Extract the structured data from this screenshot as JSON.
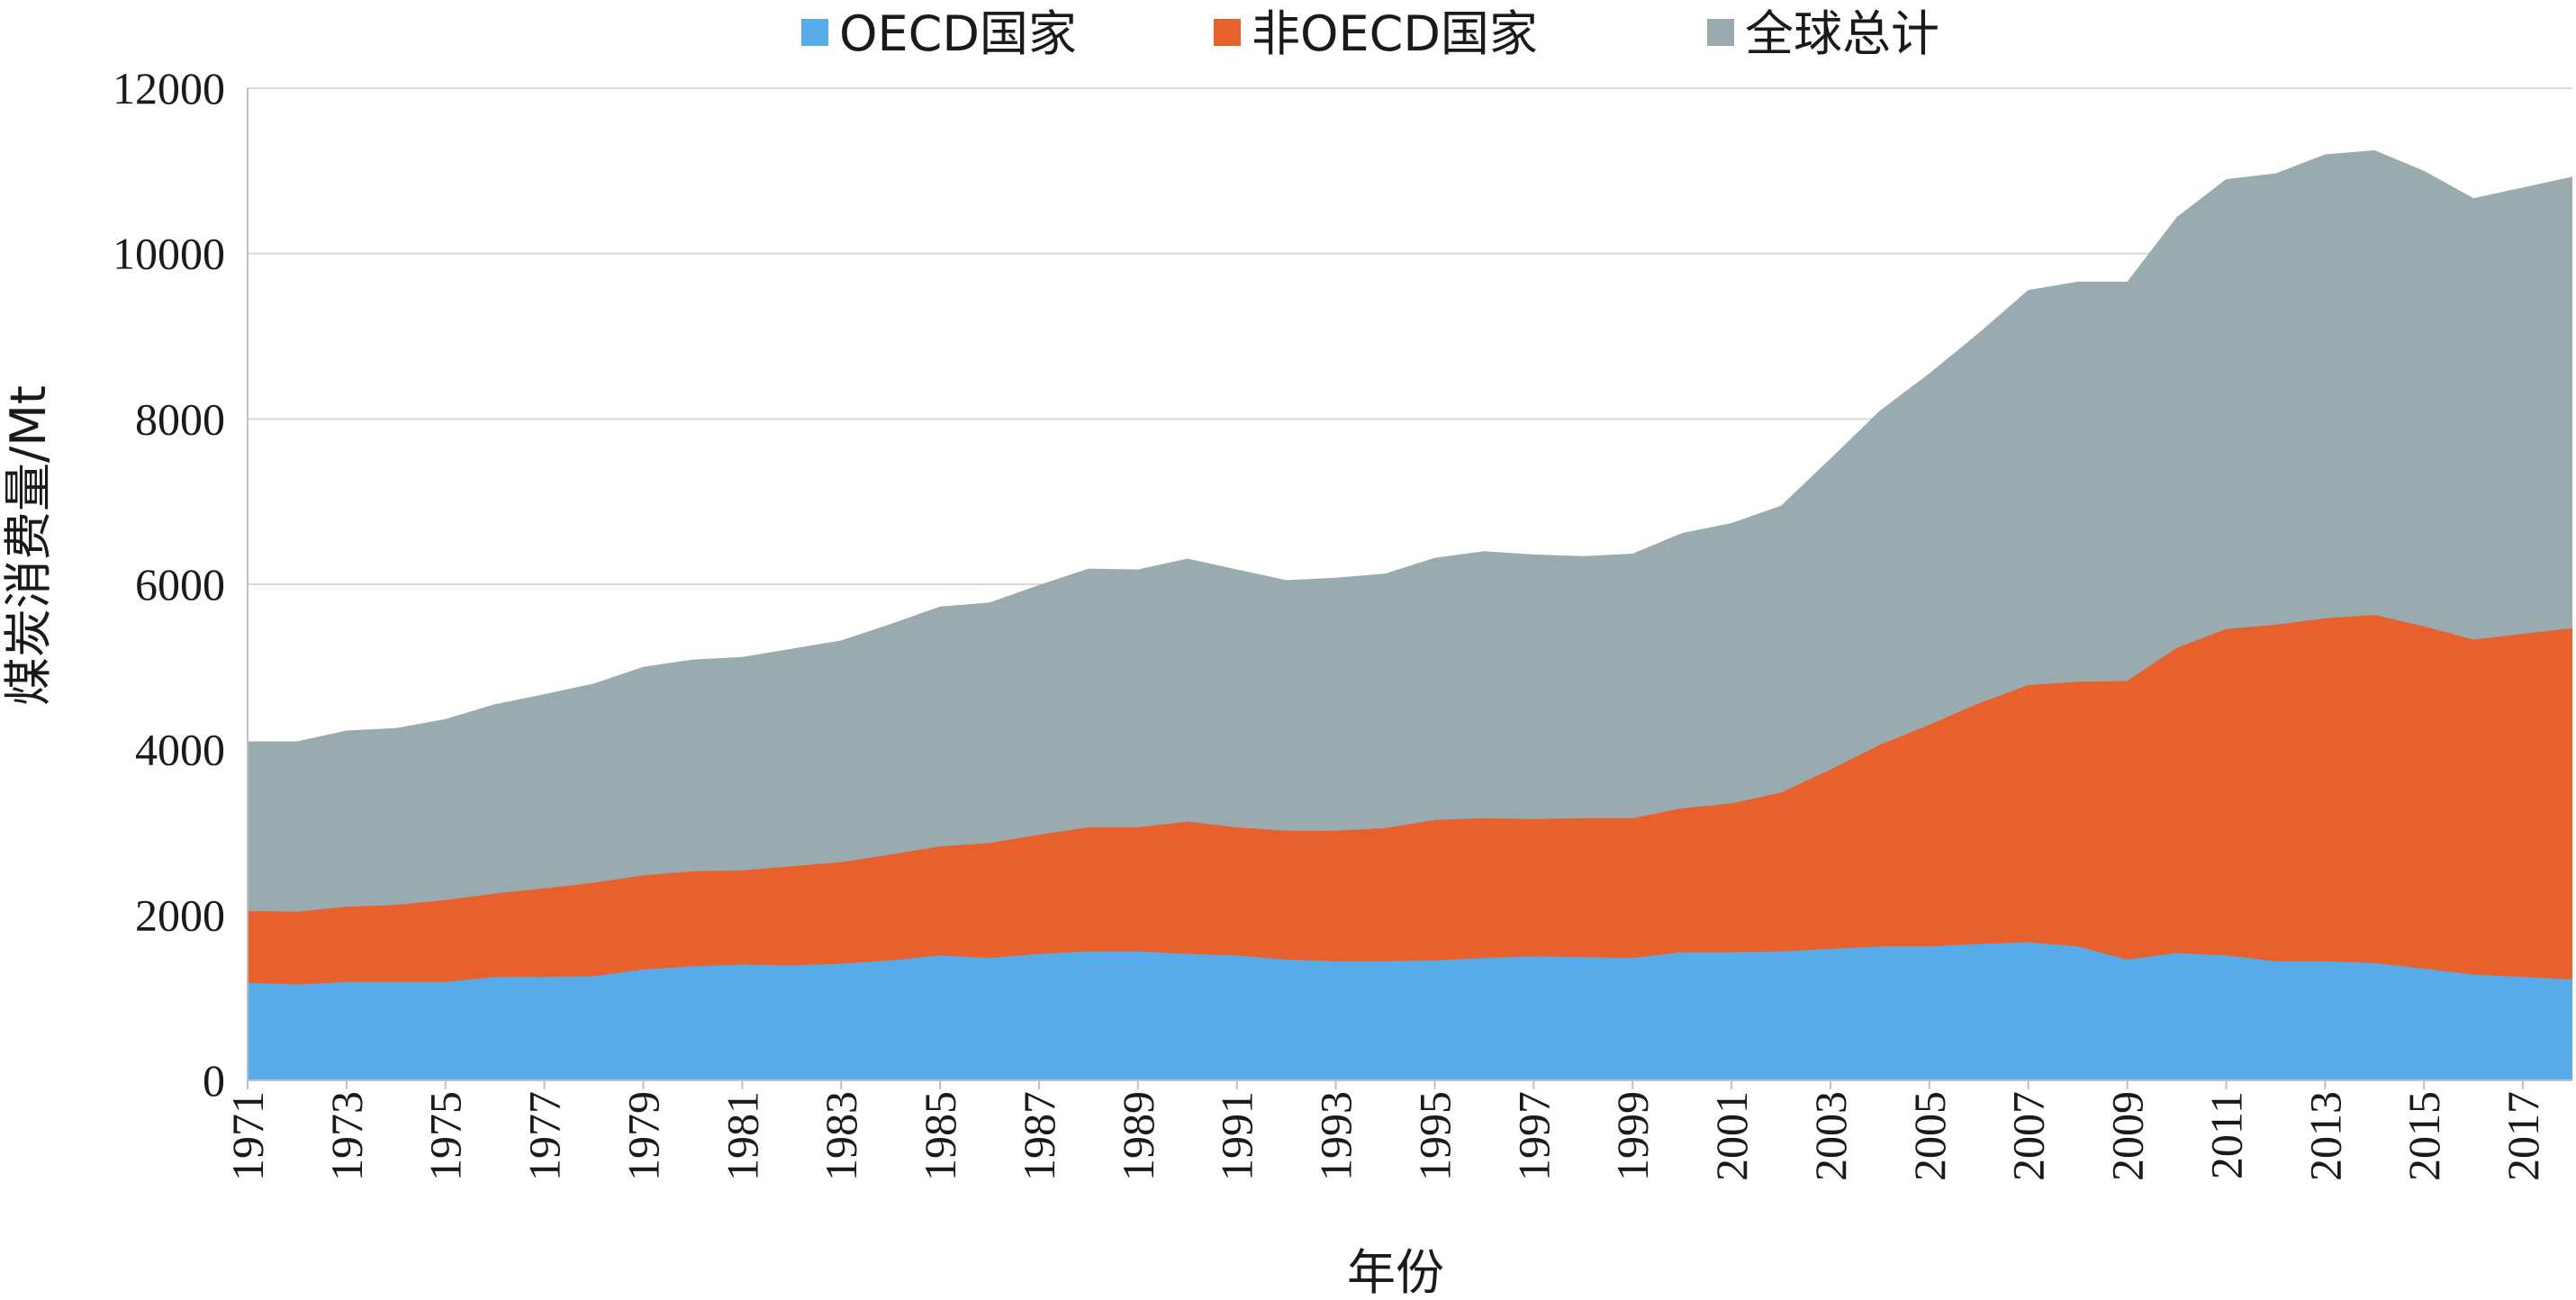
{
  "chart_data": {
    "type": "area",
    "stacked": false,
    "xlabel": "年份",
    "ylabel": "煤炭消费量/Mt",
    "ylim": [
      0,
      12000
    ],
    "y_ticks": [
      0,
      2000,
      4000,
      6000,
      8000,
      10000,
      12000
    ],
    "x": [
      1971,
      1972,
      1973,
      1974,
      1975,
      1976,
      1977,
      1978,
      1979,
      1980,
      1981,
      1982,
      1983,
      1984,
      1985,
      1986,
      1987,
      1988,
      1989,
      1990,
      1991,
      1992,
      1993,
      1994,
      1995,
      1996,
      1997,
      1998,
      1999,
      2000,
      2001,
      2002,
      2003,
      2004,
      2005,
      2006,
      2007,
      2008,
      2009,
      2010,
      2011,
      2012,
      2013,
      2014,
      2015,
      2016,
      2017,
      2018
    ],
    "x_tick_labels": [
      1971,
      1973,
      1975,
      1977,
      1979,
      1981,
      1983,
      1985,
      1987,
      1989,
      1991,
      1993,
      1995,
      1997,
      1999,
      2001,
      2003,
      2005,
      2007,
      2009,
      2011,
      2013,
      2015,
      2017
    ],
    "grid": true,
    "legend_position": "top-center",
    "series": [
      {
        "name": "全球总计",
        "color": "#9aabaf",
        "values": [
          4100,
          4100,
          4230,
          4260,
          4370,
          4550,
          4670,
          4800,
          5000,
          5090,
          5120,
          5220,
          5320,
          5520,
          5730,
          5780,
          5990,
          6190,
          6180,
          6310,
          6180,
          6050,
          6080,
          6130,
          6320,
          6400,
          6360,
          6340,
          6370,
          6620,
          6740,
          6950,
          7520,
          8100,
          8550,
          9040,
          9560,
          9660,
          9660,
          10440,
          10900,
          10970,
          11200,
          11250,
          11000,
          10670,
          10800,
          10930
        ]
      },
      {
        "name": "非OECD国家",
        "color": "#e8602c",
        "values": [
          2050,
          2040,
          2100,
          2120,
          2180,
          2260,
          2320,
          2390,
          2480,
          2530,
          2540,
          2590,
          2640,
          2730,
          2830,
          2870,
          2970,
          3060,
          3060,
          3130,
          3060,
          3020,
          3020,
          3050,
          3150,
          3170,
          3160,
          3170,
          3170,
          3290,
          3350,
          3480,
          3760,
          4060,
          4300,
          4560,
          4780,
          4820,
          4830,
          5230,
          5460,
          5510,
          5590,
          5630,
          5490,
          5330,
          5400,
          5470
        ]
      },
      {
        "name": "OECD国家",
        "color": "#57abe8",
        "values": [
          1180,
          1160,
          1190,
          1190,
          1190,
          1250,
          1250,
          1260,
          1340,
          1380,
          1400,
          1390,
          1410,
          1450,
          1510,
          1480,
          1530,
          1560,
          1560,
          1530,
          1510,
          1460,
          1440,
          1440,
          1450,
          1480,
          1500,
          1490,
          1480,
          1550,
          1550,
          1560,
          1590,
          1620,
          1620,
          1650,
          1670,
          1620,
          1460,
          1540,
          1510,
          1440,
          1440,
          1420,
          1350,
          1280,
          1250,
          1220
        ]
      }
    ],
    "legend": [
      {
        "name": "OECD国家",
        "color": "#57abe8"
      },
      {
        "name": "非OECD国家",
        "color": "#e8602c"
      },
      {
        "name": "全球总计",
        "color": "#9aabaf"
      }
    ]
  }
}
